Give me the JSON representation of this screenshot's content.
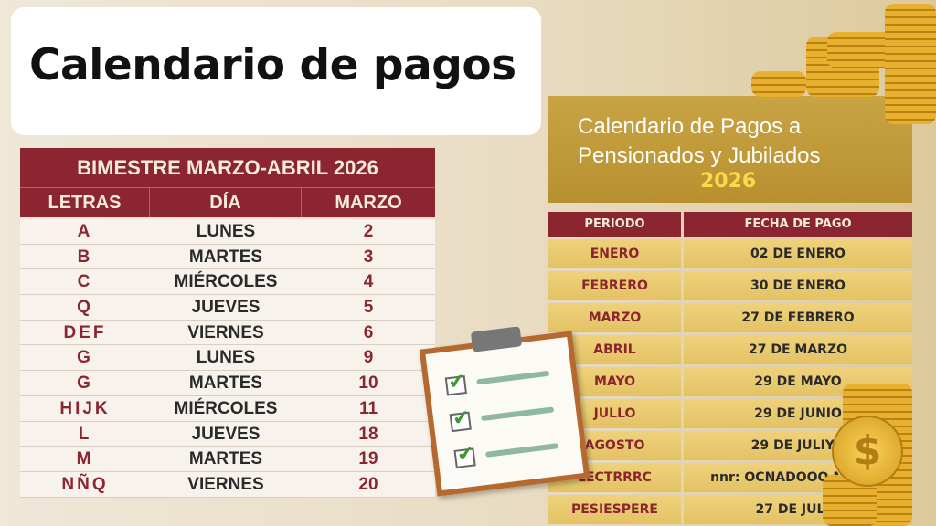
{
  "title": "Calendario de pagos",
  "left_table": {
    "banner": "BIMESTRE MARZO-ABRIL 2026",
    "headers": [
      "LETRAS",
      "DÍA",
      "MARZO"
    ],
    "rows": [
      {
        "letras": "A",
        "dia": "LUNES",
        "marzo": "2"
      },
      {
        "letras": "B",
        "dia": "MARTES",
        "marzo": "3"
      },
      {
        "letras": "C",
        "dia": "MIÉRCOLES",
        "marzo": "4"
      },
      {
        "letras": "Q",
        "dia": "JUEVES",
        "marzo": "5"
      },
      {
        "letras": "DEF",
        "dia": "VIERNES",
        "marzo": "6"
      },
      {
        "letras": "G",
        "dia": "LUNES",
        "marzo": "9"
      },
      {
        "letras": "G",
        "dia": "MARTES",
        "marzo": "10"
      },
      {
        "letras": "HIJK",
        "dia": "MIÉRCOLES",
        "marzo": "11"
      },
      {
        "letras": "L",
        "dia": "JUEVES",
        "marzo": "18"
      },
      {
        "letras": "M",
        "dia": "MARTES",
        "marzo": "19"
      },
      {
        "letras": "NÑQ",
        "dia": "VIERNES",
        "marzo": "20"
      }
    ]
  },
  "right_panel": {
    "title_line1": "Calendario de Pagos a",
    "title_line2": "Pensionados y Jubilados",
    "year": "2026",
    "headers": [
      "PERIODO",
      "FECHA DE PAGO"
    ],
    "rows": [
      {
        "periodo": "ENERO",
        "fecha": "02 DE ENERO"
      },
      {
        "periodo": "FEBRERO",
        "fecha": "30 DE ENERO"
      },
      {
        "periodo": "MARZO",
        "fecha": "27 DE FEBRERO"
      },
      {
        "periodo": "ABRIL",
        "fecha": "27 DE MARZO"
      },
      {
        "periodo": "MAYO",
        "fecha": "29 DE MAYO"
      },
      {
        "periodo": "JULLO",
        "fecha": "29 DE JUNIO"
      },
      {
        "periodo": "AGOSTO",
        "fecha": "29 DE JULIYO"
      },
      {
        "periodo": "LECTRRRC",
        "fecha": "nnr: OCNADOOO MARZO"
      },
      {
        "periodo": "PESIESPERE",
        "fecha": "27 DE JULIO"
      }
    ]
  },
  "colors": {
    "maroon": "#8b2530",
    "gold": "#c9a444",
    "row_gold": "#eed27b"
  },
  "icons": [
    "clipboard-checklist-icon",
    "gold-coins-icon",
    "dollar-coin-icon"
  ]
}
